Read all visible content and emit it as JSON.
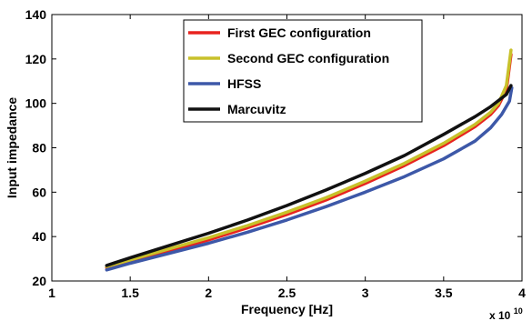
{
  "chart_data": {
    "type": "line",
    "xlabel": "Frequency [Hz]",
    "ylabel": "Input impedance",
    "x_multiplier_label": {
      "base": "x 10",
      "exponent": "10"
    },
    "xlim": [
      10000000000.0,
      40000000000.0
    ],
    "ylim": [
      20,
      140
    ],
    "xticks": [
      10000000000.0,
      15000000000.0,
      20000000000.0,
      25000000000.0,
      30000000000.0,
      35000000000.0,
      40000000000.0
    ],
    "xtick_labels": [
      "1",
      "1.5",
      "2",
      "2.5",
      "3",
      "3.5",
      "4"
    ],
    "yticks": [
      20,
      40,
      60,
      80,
      100,
      120,
      140
    ],
    "ytick_labels": [
      "20",
      "40",
      "60",
      "80",
      "100",
      "120",
      "140"
    ],
    "grid": false,
    "legend_position": "top-right",
    "series": [
      {
        "name": "First GEC configuration",
        "color": "#e8231f",
        "x": [
          13500000000.0,
          15000000000.0,
          17500000000.0,
          20000000000.0,
          22500000000.0,
          25000000000.0,
          27500000000.0,
          30000000000.0,
          32500000000.0,
          35000000000.0,
          37000000000.0,
          38000000000.0,
          38500000000.0,
          39000000000.0,
          39300000000.0
        ],
        "y": [
          26,
          29,
          33.5,
          38.5,
          44,
          50,
          56.5,
          64,
          72,
          81,
          89.5,
          95,
          99,
          106,
          122
        ]
      },
      {
        "name": "Second GEC configuration",
        "color": "#c8c12a",
        "x": [
          13500000000.0,
          15000000000.0,
          17500000000.0,
          20000000000.0,
          22500000000.0,
          25000000000.0,
          27500000000.0,
          30000000000.0,
          32500000000.0,
          35000000000.0,
          37000000000.0,
          38000000000.0,
          38500000000.0,
          39000000000.0,
          39300000000.0
        ],
        "y": [
          26.5,
          29.5,
          34.5,
          39.5,
          45,
          51,
          57.5,
          65,
          73,
          82,
          90.5,
          96,
          100,
          108,
          124
        ]
      },
      {
        "name": "HFSS",
        "color": "#3d58a8",
        "x": [
          13500000000.0,
          15000000000.0,
          17500000000.0,
          20000000000.0,
          22500000000.0,
          25000000000.0,
          27500000000.0,
          30000000000.0,
          32500000000.0,
          35000000000.0,
          37000000000.0,
          38000000000.0,
          38700000000.0,
          39200000000.0,
          39350000000.0
        ],
        "y": [
          25,
          28,
          32.5,
          37,
          42,
          47.5,
          53.5,
          60,
          67,
          75,
          83,
          89,
          95,
          101,
          107
        ]
      },
      {
        "name": "Marcuvitz",
        "color": "#111111",
        "x": [
          13500000000.0,
          15000000000.0,
          17500000000.0,
          20000000000.0,
          22500000000.0,
          25000000000.0,
          27500000000.0,
          30000000000.0,
          32500000000.0,
          35000000000.0,
          37000000000.0,
          38000000000.0,
          39000000000.0,
          39300000000.0
        ],
        "y": [
          27,
          30.5,
          36,
          41.5,
          47.5,
          54,
          61,
          68.5,
          76.5,
          86,
          94,
          98.5,
          104,
          108
        ]
      }
    ]
  }
}
